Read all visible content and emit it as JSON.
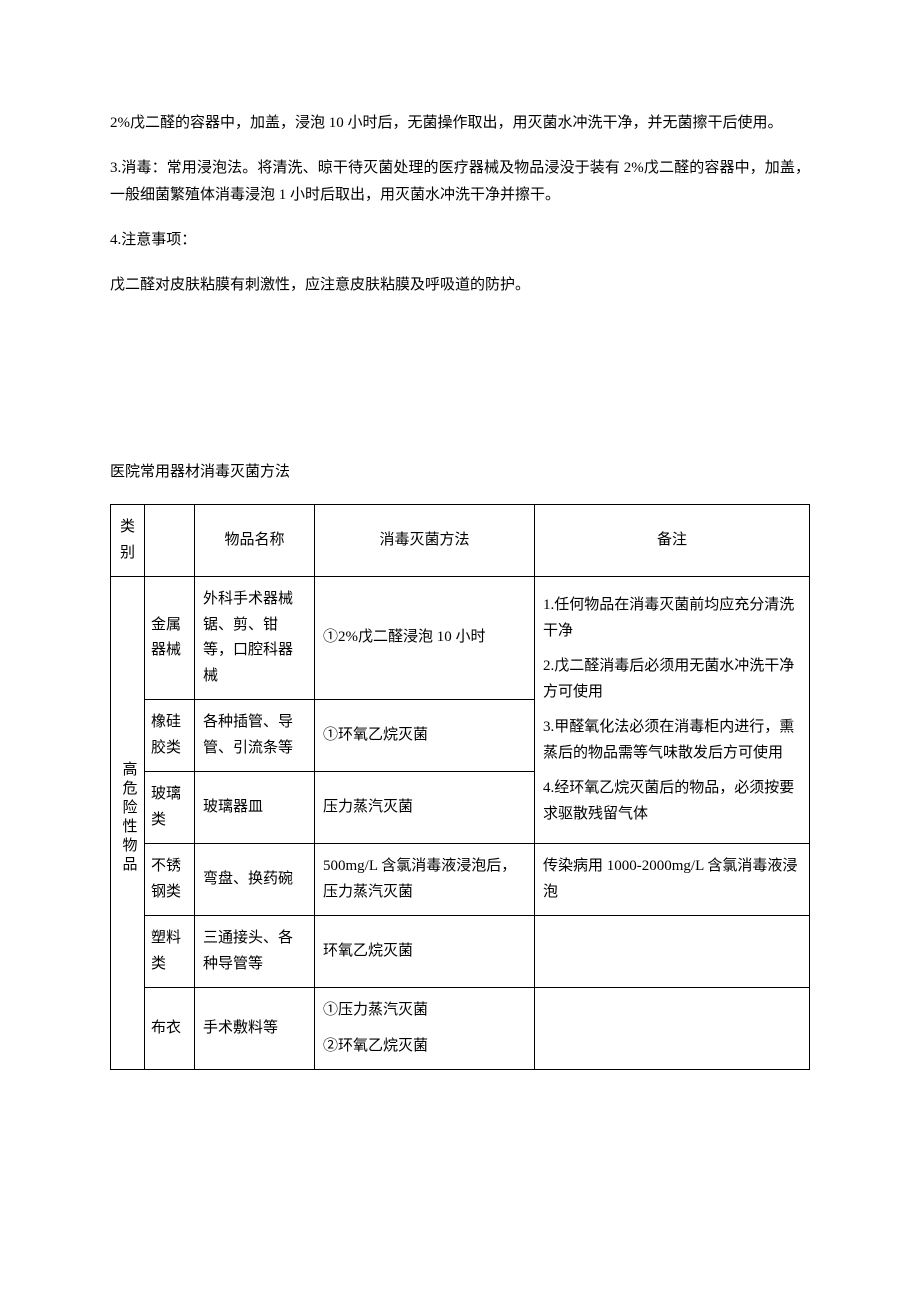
{
  "paragraphs": {
    "p1": "2%戊二醛的容器中，加盖，浸泡 10 小时后，无菌操作取出，用灭菌水冲洗干净，并无菌擦干后使用。",
    "p2": "3.消毒：常用浸泡法。将清洗、晾干待灭菌处理的医疗器械及物品浸没于装有 2%戊二醛的容器中，加盖，一般细菌繁殖体消毒浸泡 1 小时后取出，用灭菌水冲洗干净并擦干。",
    "p3": "4.注意事项：",
    "p4": "戊二醛对皮肤粘膜有刺激性，应注意皮肤粘膜及呼吸道的防护。"
  },
  "section_title": "医院常用器材消毒灭菌方法",
  "table": {
    "headers": {
      "category": "类别",
      "subtype": "",
      "name": "物品名称",
      "method": "消毒灭菌方法",
      "note": "备注"
    },
    "category_label": "高危险性物品",
    "rows": [
      {
        "subtype": "金属器械",
        "name": "外科手术器械锯、剪、钳等，口腔科器械",
        "method": "①2%戊二醛浸泡 10 小时"
      },
      {
        "subtype": "橡硅胶类",
        "name": "各种插管、导管、引流条等",
        "method": "①环氧乙烷灭菌"
      },
      {
        "subtype": "玻璃类",
        "name": "玻璃器皿",
        "method": "压力蒸汽灭菌"
      },
      {
        "subtype": "不锈钢类",
        "name": "弯盘、换药碗",
        "method": "500mg/L 含氯消毒液浸泡后，压力蒸汽灭菌",
        "note": "传染病用 1000-2000mg/L 含氯消毒液浸泡"
      },
      {
        "subtype": "塑料类",
        "name": "三通接头、各种导管等",
        "method": "环氧乙烷灭菌",
        "note": ""
      },
      {
        "subtype": "布衣",
        "name": "手术敷料等",
        "method_1": "①压力蒸汽灭菌",
        "method_2": "②环氧乙烷灭菌",
        "note": ""
      }
    ],
    "merged_notes": {
      "n1": "1.任何物品在消毒灭菌前均应充分清洗干净",
      "n2": "2.戊二醛消毒后必须用无菌水冲洗干净方可使用",
      "n3": "3.甲醛氧化法必须在消毒柜内进行，熏蒸后的物品需等气味散发后方可使用",
      "n4": "4.经环氧乙烷灭菌后的物品，必须按要求驱散残留气体"
    }
  }
}
